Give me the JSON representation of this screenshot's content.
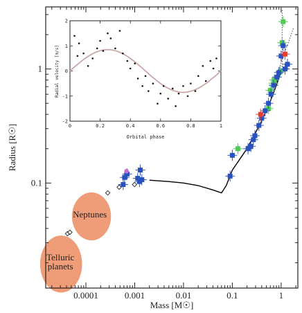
{
  "chart_data": [
    {
      "type": "scatter",
      "title": "",
      "xlabel": "Mass [M☉]",
      "ylabel": "Radius [R☉]",
      "x_scale": "log",
      "y_scale": "log",
      "xlim": [
        1.5e-05,
        2.2
      ],
      "ylim": [
        0.012,
        3.5
      ],
      "x_ticks": [
        {
          "value": 0.0001,
          "label": "0.0001"
        },
        {
          "value": 0.001,
          "label": "0.001"
        },
        {
          "value": 0.01,
          "label": "0.01"
        },
        {
          "value": 0.1,
          "label": "0.1"
        },
        {
          "value": 1,
          "label": "1"
        }
      ],
      "y_ticks": [
        {
          "value": 0.1,
          "label": "0.1"
        },
        {
          "value": 1,
          "label": "1"
        }
      ],
      "colors": {
        "blue": "#2a52be",
        "green": "#52c85a",
        "red": "#e04030",
        "purple": "#c36fd0",
        "ellipse": "#ee9d78",
        "curve": "#000000"
      },
      "blue_points": [
        {
          "x": 0.00058,
          "y": 0.097
        },
        {
          "x": 0.00062,
          "y": 0.112
        },
        {
          "x": 0.0007,
          "y": 0.12
        },
        {
          "x": 0.00115,
          "y": 0.11
        },
        {
          "x": 0.00125,
          "y": 0.103
        },
        {
          "x": 0.0014,
          "y": 0.107
        },
        {
          "x": 0.0013,
          "y": 0.13
        },
        {
          "x": 0.09,
          "y": 0.115
        },
        {
          "x": 0.1,
          "y": 0.175
        },
        {
          "x": 0.21,
          "y": 0.2
        },
        {
          "x": 0.24,
          "y": 0.21
        },
        {
          "x": 0.27,
          "y": 0.24
        },
        {
          "x": 0.29,
          "y": 0.26
        },
        {
          "x": 0.35,
          "y": 0.32
        },
        {
          "x": 0.4,
          "y": 0.37
        },
        {
          "x": 0.47,
          "y": 0.43
        },
        {
          "x": 0.55,
          "y": 0.5
        },
        {
          "x": 0.62,
          "y": 0.6
        },
        {
          "x": 0.7,
          "y": 0.72
        },
        {
          "x": 0.82,
          "y": 0.85
        },
        {
          "x": 0.9,
          "y": 0.93
        },
        {
          "x": 1.0,
          "y": 1.3
        },
        {
          "x": 1.1,
          "y": 1.6
        },
        {
          "x": 1.2,
          "y": 1.0
        },
        {
          "x": 1.35,
          "y": 1.1
        }
      ],
      "green_points": [
        {
          "x": 0.13,
          "y": 0.2
        },
        {
          "x": 0.55,
          "y": 0.45
        },
        {
          "x": 0.6,
          "y": 0.65
        },
        {
          "x": 0.7,
          "y": 0.75
        },
        {
          "x": 0.72,
          "y": 0.8
        },
        {
          "x": 0.95,
          "y": 0.95
        },
        {
          "x": 1.05,
          "y": 1.7
        },
        {
          "x": 1.1,
          "y": 2.6
        }
      ],
      "red_points": [
        {
          "x": 0.38,
          "y": 0.4
        },
        {
          "x": 1.2,
          "y": 1.35
        }
      ],
      "purple_points": [
        {
          "x": 0.00068,
          "y": 0.127
        }
      ],
      "open_diamonds": [
        {
          "x": 4.2e-05,
          "y": 0.036
        },
        {
          "x": 4.7e-05,
          "y": 0.037
        },
        {
          "x": 0.00028,
          "y": 0.082
        },
        {
          "x": 0.00048,
          "y": 0.092
        },
        {
          "x": 0.00099,
          "y": 0.097
        }
      ],
      "model_curve": [
        {
          "x": 0.002,
          "y": 0.106
        },
        {
          "x": 0.005,
          "y": 0.103
        },
        {
          "x": 0.01,
          "y": 0.1
        },
        {
          "x": 0.02,
          "y": 0.095
        },
        {
          "x": 0.04,
          "y": 0.087
        },
        {
          "x": 0.06,
          "y": 0.082
        },
        {
          "x": 0.075,
          "y": 0.095
        },
        {
          "x": 0.1,
          "y": 0.13
        },
        {
          "x": 0.2,
          "y": 0.2
        },
        {
          "x": 0.4,
          "y": 0.35
        },
        {
          "x": 0.6,
          "y": 0.52
        },
        {
          "x": 0.8,
          "y": 0.72
        },
        {
          "x": 1.0,
          "y": 0.95
        }
      ],
      "dotted_curve": [
        {
          "x": 0.8,
          "y": 0.8
        },
        {
          "x": 1.0,
          "y": 1.15
        },
        {
          "x": 1.4,
          "y": 1.7
        },
        {
          "x": 1.8,
          "y": 2.3
        }
      ],
      "dotted_vertical": {
        "x": 1.05,
        "y_from": 0.9,
        "y_to": 3.3
      },
      "annotations": [
        {
          "text": "Neptunes",
          "x": 0.00012,
          "y": 0.05
        },
        {
          "text": "Telluric",
          "x": 3e-05,
          "y": 0.021
        },
        {
          "text": "planets",
          "x": 3e-05,
          "y": 0.0175
        }
      ],
      "regions": [
        {
          "name": "neptunes-region",
          "cx": 0.00013,
          "cy": 0.051,
          "rx_decades": 0.4,
          "ry_decades": 0.21
        },
        {
          "name": "telluric-region",
          "cx": 3.1e-05,
          "cy": 0.0195,
          "rx_decades": 0.43,
          "ry_decades": 0.25
        }
      ]
    },
    {
      "type": "scatter",
      "title": "",
      "xlabel": "Orbital phase",
      "ylabel": "Radial velocity [m/s]",
      "xlim": [
        0,
        1
      ],
      "ylim": [
        -2,
        2
      ],
      "x_ticks": [
        {
          "value": 0,
          "label": "0"
        },
        {
          "value": 0.2,
          "label": "0.2"
        },
        {
          "value": 0.4,
          "label": "0.4"
        },
        {
          "value": 0.6,
          "label": "0.6"
        },
        {
          "value": 0.8,
          "label": "0.8"
        },
        {
          "value": 1,
          "label": "1"
        }
      ],
      "y_ticks": [
        {
          "value": -2,
          "label": "-2"
        },
        {
          "value": -1,
          "label": "-1"
        },
        {
          "value": 0,
          "label": "0"
        },
        {
          "value": 1,
          "label": "1"
        },
        {
          "value": 2,
          "label": "2"
        }
      ],
      "model": {
        "amplitude": 0.85,
        "phase_of_max": 0.25
      },
      "points": [
        {
          "x": 0.03,
          "y": 1.4
        },
        {
          "x": 0.05,
          "y": 0.6
        },
        {
          "x": 0.06,
          "y": 1.1
        },
        {
          "x": 0.09,
          "y": 0.7
        },
        {
          "x": 0.12,
          "y": 0.2
        },
        {
          "x": 0.15,
          "y": 0.5
        },
        {
          "x": 0.18,
          "y": 0.9
        },
        {
          "x": 0.2,
          "y": 1.2
        },
        {
          "x": 0.22,
          "y": 0.8
        },
        {
          "x": 0.25,
          "y": 1.5
        },
        {
          "x": 0.27,
          "y": 1.3
        },
        {
          "x": 0.3,
          "y": 0.9
        },
        {
          "x": 0.33,
          "y": 1.6
        },
        {
          "x": 0.35,
          "y": 0.7
        },
        {
          "x": 0.38,
          "y": 0.4
        },
        {
          "x": 0.4,
          "y": 0.1
        },
        {
          "x": 0.43,
          "y": 0.3
        },
        {
          "x": 0.45,
          "y": -0.3
        },
        {
          "x": 0.48,
          "y": -0.6
        },
        {
          "x": 0.5,
          "y": -0.2
        },
        {
          "x": 0.52,
          "y": -0.8
        },
        {
          "x": 0.55,
          "y": -0.5
        },
        {
          "x": 0.58,
          "y": -1.3
        },
        {
          "x": 0.6,
          "y": -0.9
        },
        {
          "x": 0.62,
          "y": -0.6
        },
        {
          "x": 0.65,
          "y": -1.1
        },
        {
          "x": 0.68,
          "y": -0.7
        },
        {
          "x": 0.7,
          "y": -1.4
        },
        {
          "x": 0.72,
          "y": -0.9
        },
        {
          "x": 0.75,
          "y": -0.6
        },
        {
          "x": 0.78,
          "y": -1.0
        },
        {
          "x": 0.8,
          "y": -0.5
        },
        {
          "x": 0.83,
          "y": -0.8
        },
        {
          "x": 0.85,
          "y": -0.2
        },
        {
          "x": 0.88,
          "y": 0.2
        },
        {
          "x": 0.9,
          "y": -0.4
        },
        {
          "x": 0.93,
          "y": 0.4
        },
        {
          "x": 0.95,
          "y": 0.1
        },
        {
          "x": 0.97,
          "y": 0.5
        }
      ]
    }
  ]
}
